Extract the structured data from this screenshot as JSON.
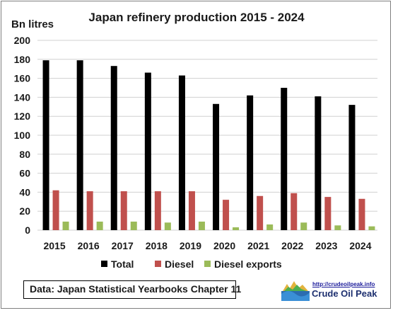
{
  "chart_data": {
    "type": "bar",
    "title": "Japan refinery production 2015 - 2024",
    "ylabel": "Bn litres",
    "xlabel": "",
    "ylim": [
      0,
      200
    ],
    "yticks": [
      0,
      20,
      40,
      60,
      80,
      100,
      120,
      140,
      160,
      180,
      200
    ],
    "grid": true,
    "legend_position": "bottom",
    "categories": [
      "2015",
      "2016",
      "2017",
      "2018",
      "2019",
      "2020",
      "2021",
      "2022",
      "2023",
      "2024"
    ],
    "series": [
      {
        "name": "Total",
        "color": "#000000",
        "values": [
          179,
          179,
          173,
          166,
          163,
          133,
          142,
          150,
          141,
          132
        ]
      },
      {
        "name": "Diesel",
        "color": "#c0504d",
        "values": [
          42,
          41,
          41,
          41,
          41,
          32,
          36,
          39,
          35,
          33
        ]
      },
      {
        "name": "Diesel exports",
        "color": "#9bbb59",
        "values": [
          9,
          9,
          9,
          8,
          9,
          3,
          6,
          8,
          5,
          4
        ]
      }
    ]
  },
  "source_note": "Data: Japan Statistical Yearbooks Chapter 11",
  "logo": {
    "url_text": "http://crudeoilpeak.info",
    "name": "Crude Oil Peak"
  }
}
